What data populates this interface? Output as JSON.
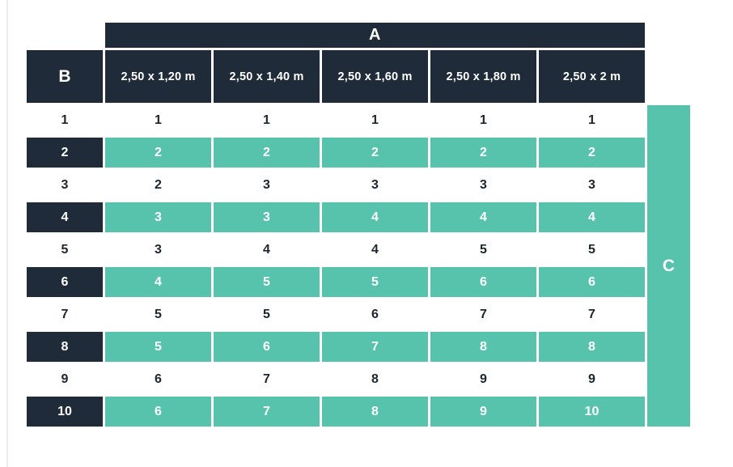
{
  "colors": {
    "navy": "#1f2b39",
    "teal": "#57c3ad",
    "text_dark": "#1c2630",
    "edge_line": "#ececec",
    "background": "#ffffff"
  },
  "table": {
    "group_header": "A",
    "corner_label": "B",
    "side_label": "C",
    "columns": [
      "2,50 x 1,20 m",
      "2,50 x 1,40 m",
      "2,50 x 1,60 m",
      "2,50 x 1,80 m",
      "2,50 x 2 m"
    ],
    "rows": [
      {
        "label": "1",
        "values": [
          "1",
          "1",
          "1",
          "1",
          "1"
        ],
        "highlight": false
      },
      {
        "label": "2",
        "values": [
          "2",
          "2",
          "2",
          "2",
          "2"
        ],
        "highlight": true
      },
      {
        "label": "3",
        "values": [
          "2",
          "3",
          "3",
          "3",
          "3"
        ],
        "highlight": false
      },
      {
        "label": "4",
        "values": [
          "3",
          "3",
          "4",
          "4",
          "4"
        ],
        "highlight": true
      },
      {
        "label": "5",
        "values": [
          "3",
          "4",
          "4",
          "5",
          "5"
        ],
        "highlight": false
      },
      {
        "label": "6",
        "values": [
          "4",
          "5",
          "5",
          "6",
          "6"
        ],
        "highlight": true
      },
      {
        "label": "7",
        "values": [
          "5",
          "5",
          "6",
          "7",
          "7"
        ],
        "highlight": false
      },
      {
        "label": "8",
        "values": [
          "5",
          "6",
          "7",
          "8",
          "8"
        ],
        "highlight": true
      },
      {
        "label": "9",
        "values": [
          "6",
          "7",
          "8",
          "9",
          "9"
        ],
        "highlight": false
      },
      {
        "label": "10",
        "values": [
          "6",
          "7",
          "8",
          "9",
          "10"
        ],
        "highlight": true
      }
    ]
  },
  "chart_data": {
    "type": "table",
    "title": "",
    "column_group_label": "A",
    "row_group_label": "B",
    "side_band_label": "C",
    "columns": [
      "2,50 x 1,20 m",
      "2,50 x 1,40 m",
      "2,50 x 1,60 m",
      "2,50 x 1,80 m",
      "2,50 x 2 m"
    ],
    "rows": [
      {
        "B": 1,
        "values": [
          1,
          1,
          1,
          1,
          1
        ]
      },
      {
        "B": 2,
        "values": [
          2,
          2,
          2,
          2,
          2
        ]
      },
      {
        "B": 3,
        "values": [
          2,
          3,
          3,
          3,
          3
        ]
      },
      {
        "B": 4,
        "values": [
          3,
          3,
          4,
          4,
          4
        ]
      },
      {
        "B": 5,
        "values": [
          3,
          4,
          4,
          5,
          5
        ]
      },
      {
        "B": 6,
        "values": [
          4,
          5,
          5,
          6,
          6
        ]
      },
      {
        "B": 7,
        "values": [
          5,
          5,
          6,
          7,
          7
        ]
      },
      {
        "B": 8,
        "values": [
          5,
          6,
          7,
          8,
          8
        ]
      },
      {
        "B": 9,
        "values": [
          6,
          7,
          8,
          9,
          9
        ]
      },
      {
        "B": 10,
        "values": [
          6,
          7,
          8,
          9,
          10
        ]
      }
    ],
    "layout_hints": {
      "striped_rows": "even rows teal with white text, odd rows white with dark text",
      "header_color": "#1f2b39",
      "stripe_color": "#57c3ad"
    }
  }
}
